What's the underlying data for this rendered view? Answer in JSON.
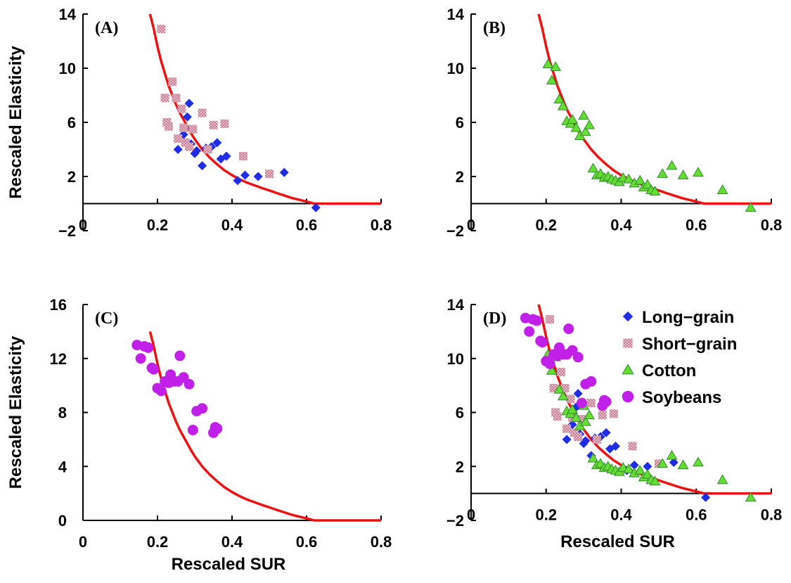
{
  "colors": {
    "long_grain": "#1f2de6",
    "short_grain": "#e8a8b0",
    "short_grain_hatch": "#c07890",
    "cotton": "#66dd33",
    "cotton_edge": "#2e8b2e",
    "soybeans": "#c020e8",
    "curve": "#ee1111"
  },
  "icons": {
    "long_grain": "diamond-icon",
    "short_grain": "square-icon",
    "cotton": "triangle-icon",
    "soybeans": "circle-icon"
  },
  "legend": {
    "placement": "top-right of panel D",
    "items": [
      {
        "key": "long_grain",
        "label": "Long−grain"
      },
      {
        "key": "short_grain",
        "label": "Short−grain"
      },
      {
        "key": "cotton",
        "label": "Cotton"
      },
      {
        "key": "soybeans",
        "label": "Soybeans"
      }
    ]
  },
  "chart_data": [
    {
      "id": "A",
      "type": "scatter",
      "panel_label": "(A)",
      "xlabel": "",
      "ylabel": "Rescaled Elasticity",
      "xlim": [
        0,
        0.8
      ],
      "ylim": [
        -2,
        14
      ],
      "xticks": [
        "0",
        "0.2",
        "0.4",
        "0.6",
        "0.8"
      ],
      "yticks": [
        "−2",
        "2",
        "6",
        "10",
        "14"
      ],
      "xtick_values": [
        0,
        0.2,
        0.4,
        0.6,
        0.8
      ],
      "ytick_values": [
        -2,
        2,
        6,
        10,
        14
      ],
      "show_curve": true,
      "series": [
        {
          "key": "long_grain",
          "points": [
            [
              0.255,
              4.0
            ],
            [
              0.27,
              5.1
            ],
            [
              0.28,
              6.4
            ],
            [
              0.285,
              7.4
            ],
            [
              0.29,
              4.4
            ],
            [
              0.3,
              3.7
            ],
            [
              0.305,
              3.9
            ],
            [
              0.32,
              2.8
            ],
            [
              0.33,
              4.1
            ],
            [
              0.345,
              4.2
            ],
            [
              0.36,
              4.5
            ],
            [
              0.37,
              3.3
            ],
            [
              0.385,
              3.5
            ],
            [
              0.415,
              1.7
            ],
            [
              0.435,
              2.1
            ],
            [
              0.47,
              2.0
            ],
            [
              0.54,
              2.3
            ],
            [
              0.625,
              -0.3
            ]
          ]
        },
        {
          "key": "short_grain",
          "points": [
            [
              0.21,
              12.9
            ],
            [
              0.22,
              7.8
            ],
            [
              0.225,
              6.0
            ],
            [
              0.23,
              5.7
            ],
            [
              0.24,
              9.0
            ],
            [
              0.25,
              7.8
            ],
            [
              0.255,
              4.8
            ],
            [
              0.265,
              7.0
            ],
            [
              0.27,
              5.6
            ],
            [
              0.275,
              4.5
            ],
            [
              0.285,
              4.2
            ],
            [
              0.295,
              5.5
            ],
            [
              0.32,
              6.7
            ],
            [
              0.335,
              4.0
            ],
            [
              0.35,
              5.8
            ],
            [
              0.38,
              5.9
            ],
            [
              0.43,
              3.5
            ],
            [
              0.5,
              2.2
            ]
          ]
        }
      ]
    },
    {
      "id": "B",
      "type": "scatter",
      "panel_label": "(B)",
      "xlabel": "",
      "ylabel": "",
      "xlim": [
        0,
        0.8
      ],
      "ylim": [
        -2,
        14
      ],
      "xticks": [
        "0",
        "0.2",
        "0.4",
        "0.6",
        "0.8"
      ],
      "yticks": [
        "−2",
        "2",
        "6",
        "10",
        "14"
      ],
      "xtick_values": [
        0,
        0.2,
        0.4,
        0.6,
        0.8
      ],
      "ytick_values": [
        -2,
        2,
        6,
        10,
        14
      ],
      "show_curve": true,
      "series": [
        {
          "key": "cotton",
          "points": [
            [
              0.205,
              10.3
            ],
            [
              0.215,
              9.1
            ],
            [
              0.225,
              10.1
            ],
            [
              0.235,
              7.7
            ],
            [
              0.245,
              7.2
            ],
            [
              0.255,
              6.1
            ],
            [
              0.265,
              5.9
            ],
            [
              0.27,
              6.2
            ],
            [
              0.28,
              5.6
            ],
            [
              0.29,
              5.0
            ],
            [
              0.3,
              6.5
            ],
            [
              0.305,
              5.3
            ],
            [
              0.315,
              5.8
            ],
            [
              0.325,
              2.6
            ],
            [
              0.335,
              2.1
            ],
            [
              0.345,
              2.2
            ],
            [
              0.355,
              1.9
            ],
            [
              0.365,
              2.0
            ],
            [
              0.375,
              1.8
            ],
            [
              0.385,
              1.7
            ],
            [
              0.395,
              1.6
            ],
            [
              0.405,
              1.9
            ],
            [
              0.42,
              1.8
            ],
            [
              0.435,
              1.5
            ],
            [
              0.45,
              1.7
            ],
            [
              0.46,
              1.2
            ],
            [
              0.47,
              1.4
            ],
            [
              0.48,
              1.0
            ],
            [
              0.49,
              0.9
            ],
            [
              0.51,
              2.2
            ],
            [
              0.535,
              2.8
            ],
            [
              0.565,
              2.1
            ],
            [
              0.605,
              2.3
            ],
            [
              0.67,
              1.0
            ],
            [
              0.745,
              -0.3
            ]
          ]
        }
      ]
    },
    {
      "id": "C",
      "type": "scatter",
      "panel_label": "(C)",
      "xlabel": "Rescaled SUR",
      "ylabel": "Rescaled Elasticity",
      "xlim": [
        0,
        0.8
      ],
      "ylim": [
        0,
        16
      ],
      "xticks": [
        "0",
        "0.2",
        "0.4",
        "0.6",
        "0.8"
      ],
      "yticks": [
        "0",
        "4",
        "8",
        "12",
        "16"
      ],
      "xtick_values": [
        0,
        0.2,
        0.4,
        0.6,
        0.8
      ],
      "ytick_values": [
        0,
        4,
        8,
        12,
        16
      ],
      "show_curve": true,
      "series": [
        {
          "key": "soybeans",
          "points": [
            [
              0.145,
              13.0
            ],
            [
              0.155,
              12.0
            ],
            [
              0.165,
              12.9
            ],
            [
              0.175,
              12.8
            ],
            [
              0.185,
              11.3
            ],
            [
              0.19,
              11.2
            ],
            [
              0.2,
              9.8
            ],
            [
              0.21,
              9.6
            ],
            [
              0.22,
              10.3
            ],
            [
              0.23,
              10.2
            ],
            [
              0.235,
              10.8
            ],
            [
              0.245,
              10.3
            ],
            [
              0.255,
              10.3
            ],
            [
              0.26,
              12.2
            ],
            [
              0.27,
              10.6
            ],
            [
              0.285,
              10.1
            ],
            [
              0.295,
              6.7
            ],
            [
              0.305,
              8.1
            ],
            [
              0.32,
              8.3
            ],
            [
              0.35,
              6.5
            ],
            [
              0.355,
              6.9
            ],
            [
              0.36,
              6.8
            ]
          ]
        }
      ]
    },
    {
      "id": "D",
      "type": "scatter",
      "panel_label": "(D)",
      "xlabel": "Rescaled SUR",
      "ylabel": "",
      "xlim": [
        0,
        0.8
      ],
      "ylim": [
        -2,
        14
      ],
      "xticks": [
        "0",
        "0.2",
        "0.4",
        "0.6",
        "0.8"
      ],
      "yticks": [
        "−2",
        "2",
        "6",
        "10",
        "14"
      ],
      "xtick_values": [
        0,
        0.2,
        0.4,
        0.6,
        0.8
      ],
      "ytick_values": [
        -2,
        2,
        6,
        10,
        14
      ],
      "show_curve": true,
      "series": [
        {
          "key": "long_grain",
          "points": [
            [
              0.255,
              4.0
            ],
            [
              0.27,
              5.1
            ],
            [
              0.28,
              6.4
            ],
            [
              0.285,
              7.4
            ],
            [
              0.29,
              4.4
            ],
            [
              0.3,
              3.7
            ],
            [
              0.305,
              3.9
            ],
            [
              0.32,
              2.8
            ],
            [
              0.33,
              4.1
            ],
            [
              0.345,
              4.2
            ],
            [
              0.36,
              4.5
            ],
            [
              0.37,
              3.3
            ],
            [
              0.385,
              3.5
            ],
            [
              0.415,
              1.7
            ],
            [
              0.435,
              2.1
            ],
            [
              0.47,
              2.0
            ],
            [
              0.54,
              2.3
            ],
            [
              0.625,
              -0.3
            ]
          ]
        },
        {
          "key": "short_grain",
          "points": [
            [
              0.21,
              12.9
            ],
            [
              0.22,
              7.8
            ],
            [
              0.225,
              6.0
            ],
            [
              0.23,
              5.7
            ],
            [
              0.24,
              9.0
            ],
            [
              0.25,
              7.8
            ],
            [
              0.255,
              4.8
            ],
            [
              0.265,
              7.0
            ],
            [
              0.27,
              5.6
            ],
            [
              0.275,
              4.5
            ],
            [
              0.285,
              4.2
            ],
            [
              0.295,
              5.5
            ],
            [
              0.32,
              6.7
            ],
            [
              0.335,
              4.0
            ],
            [
              0.35,
              5.8
            ],
            [
              0.38,
              5.9
            ],
            [
              0.43,
              3.5
            ],
            [
              0.5,
              2.2
            ]
          ]
        },
        {
          "key": "cotton",
          "points": [
            [
              0.205,
              10.3
            ],
            [
              0.215,
              9.1
            ],
            [
              0.225,
              10.1
            ],
            [
              0.235,
              7.7
            ],
            [
              0.245,
              7.2
            ],
            [
              0.255,
              6.1
            ],
            [
              0.265,
              5.9
            ],
            [
              0.27,
              6.2
            ],
            [
              0.28,
              5.6
            ],
            [
              0.29,
              5.0
            ],
            [
              0.3,
              6.5
            ],
            [
              0.305,
              5.3
            ],
            [
              0.315,
              5.8
            ],
            [
              0.325,
              2.6
            ],
            [
              0.335,
              2.1
            ],
            [
              0.345,
              2.2
            ],
            [
              0.355,
              1.9
            ],
            [
              0.365,
              2.0
            ],
            [
              0.375,
              1.8
            ],
            [
              0.385,
              1.7
            ],
            [
              0.395,
              1.6
            ],
            [
              0.405,
              1.9
            ],
            [
              0.42,
              1.8
            ],
            [
              0.435,
              1.5
            ],
            [
              0.45,
              1.7
            ],
            [
              0.46,
              1.2
            ],
            [
              0.47,
              1.4
            ],
            [
              0.48,
              1.0
            ],
            [
              0.49,
              0.9
            ],
            [
              0.51,
              2.2
            ],
            [
              0.535,
              2.8
            ],
            [
              0.565,
              2.1
            ],
            [
              0.605,
              2.3
            ],
            [
              0.67,
              1.0
            ],
            [
              0.745,
              -0.3
            ]
          ]
        },
        {
          "key": "soybeans",
          "points": [
            [
              0.145,
              13.0
            ],
            [
              0.155,
              12.0
            ],
            [
              0.165,
              12.9
            ],
            [
              0.175,
              12.8
            ],
            [
              0.185,
              11.3
            ],
            [
              0.19,
              11.2
            ],
            [
              0.2,
              9.8
            ],
            [
              0.21,
              9.6
            ],
            [
              0.22,
              10.3
            ],
            [
              0.23,
              10.2
            ],
            [
              0.235,
              10.8
            ],
            [
              0.245,
              10.3
            ],
            [
              0.255,
              10.3
            ],
            [
              0.26,
              12.2
            ],
            [
              0.27,
              10.6
            ],
            [
              0.285,
              10.1
            ],
            [
              0.295,
              6.7
            ],
            [
              0.305,
              8.1
            ],
            [
              0.32,
              8.3
            ],
            [
              0.35,
              6.5
            ],
            [
              0.355,
              6.9
            ],
            [
              0.36,
              6.8
            ]
          ]
        }
      ]
    }
  ],
  "fit_curve": [
    [
      0.18,
      14.0
    ],
    [
      0.19,
      12.9
    ],
    [
      0.2,
      11.6
    ],
    [
      0.21,
      10.5
    ],
    [
      0.22,
      9.6
    ],
    [
      0.23,
      8.7
    ],
    [
      0.24,
      8.0
    ],
    [
      0.25,
      7.3
    ],
    [
      0.26,
      6.7
    ],
    [
      0.27,
      6.2
    ],
    [
      0.28,
      5.7
    ],
    [
      0.29,
      5.2
    ],
    [
      0.3,
      4.75
    ],
    [
      0.32,
      4.0
    ],
    [
      0.34,
      3.4
    ],
    [
      0.36,
      2.9
    ],
    [
      0.38,
      2.45
    ],
    [
      0.4,
      2.1
    ],
    [
      0.42,
      1.8
    ],
    [
      0.44,
      1.55
    ],
    [
      0.46,
      1.35
    ],
    [
      0.48,
      1.15
    ],
    [
      0.5,
      0.97
    ],
    [
      0.52,
      0.78
    ],
    [
      0.54,
      0.6
    ],
    [
      0.56,
      0.42
    ],
    [
      0.58,
      0.28
    ],
    [
      0.6,
      0.15
    ],
    [
      0.62,
      0.0
    ],
    [
      0.8,
      0.0
    ]
  ]
}
